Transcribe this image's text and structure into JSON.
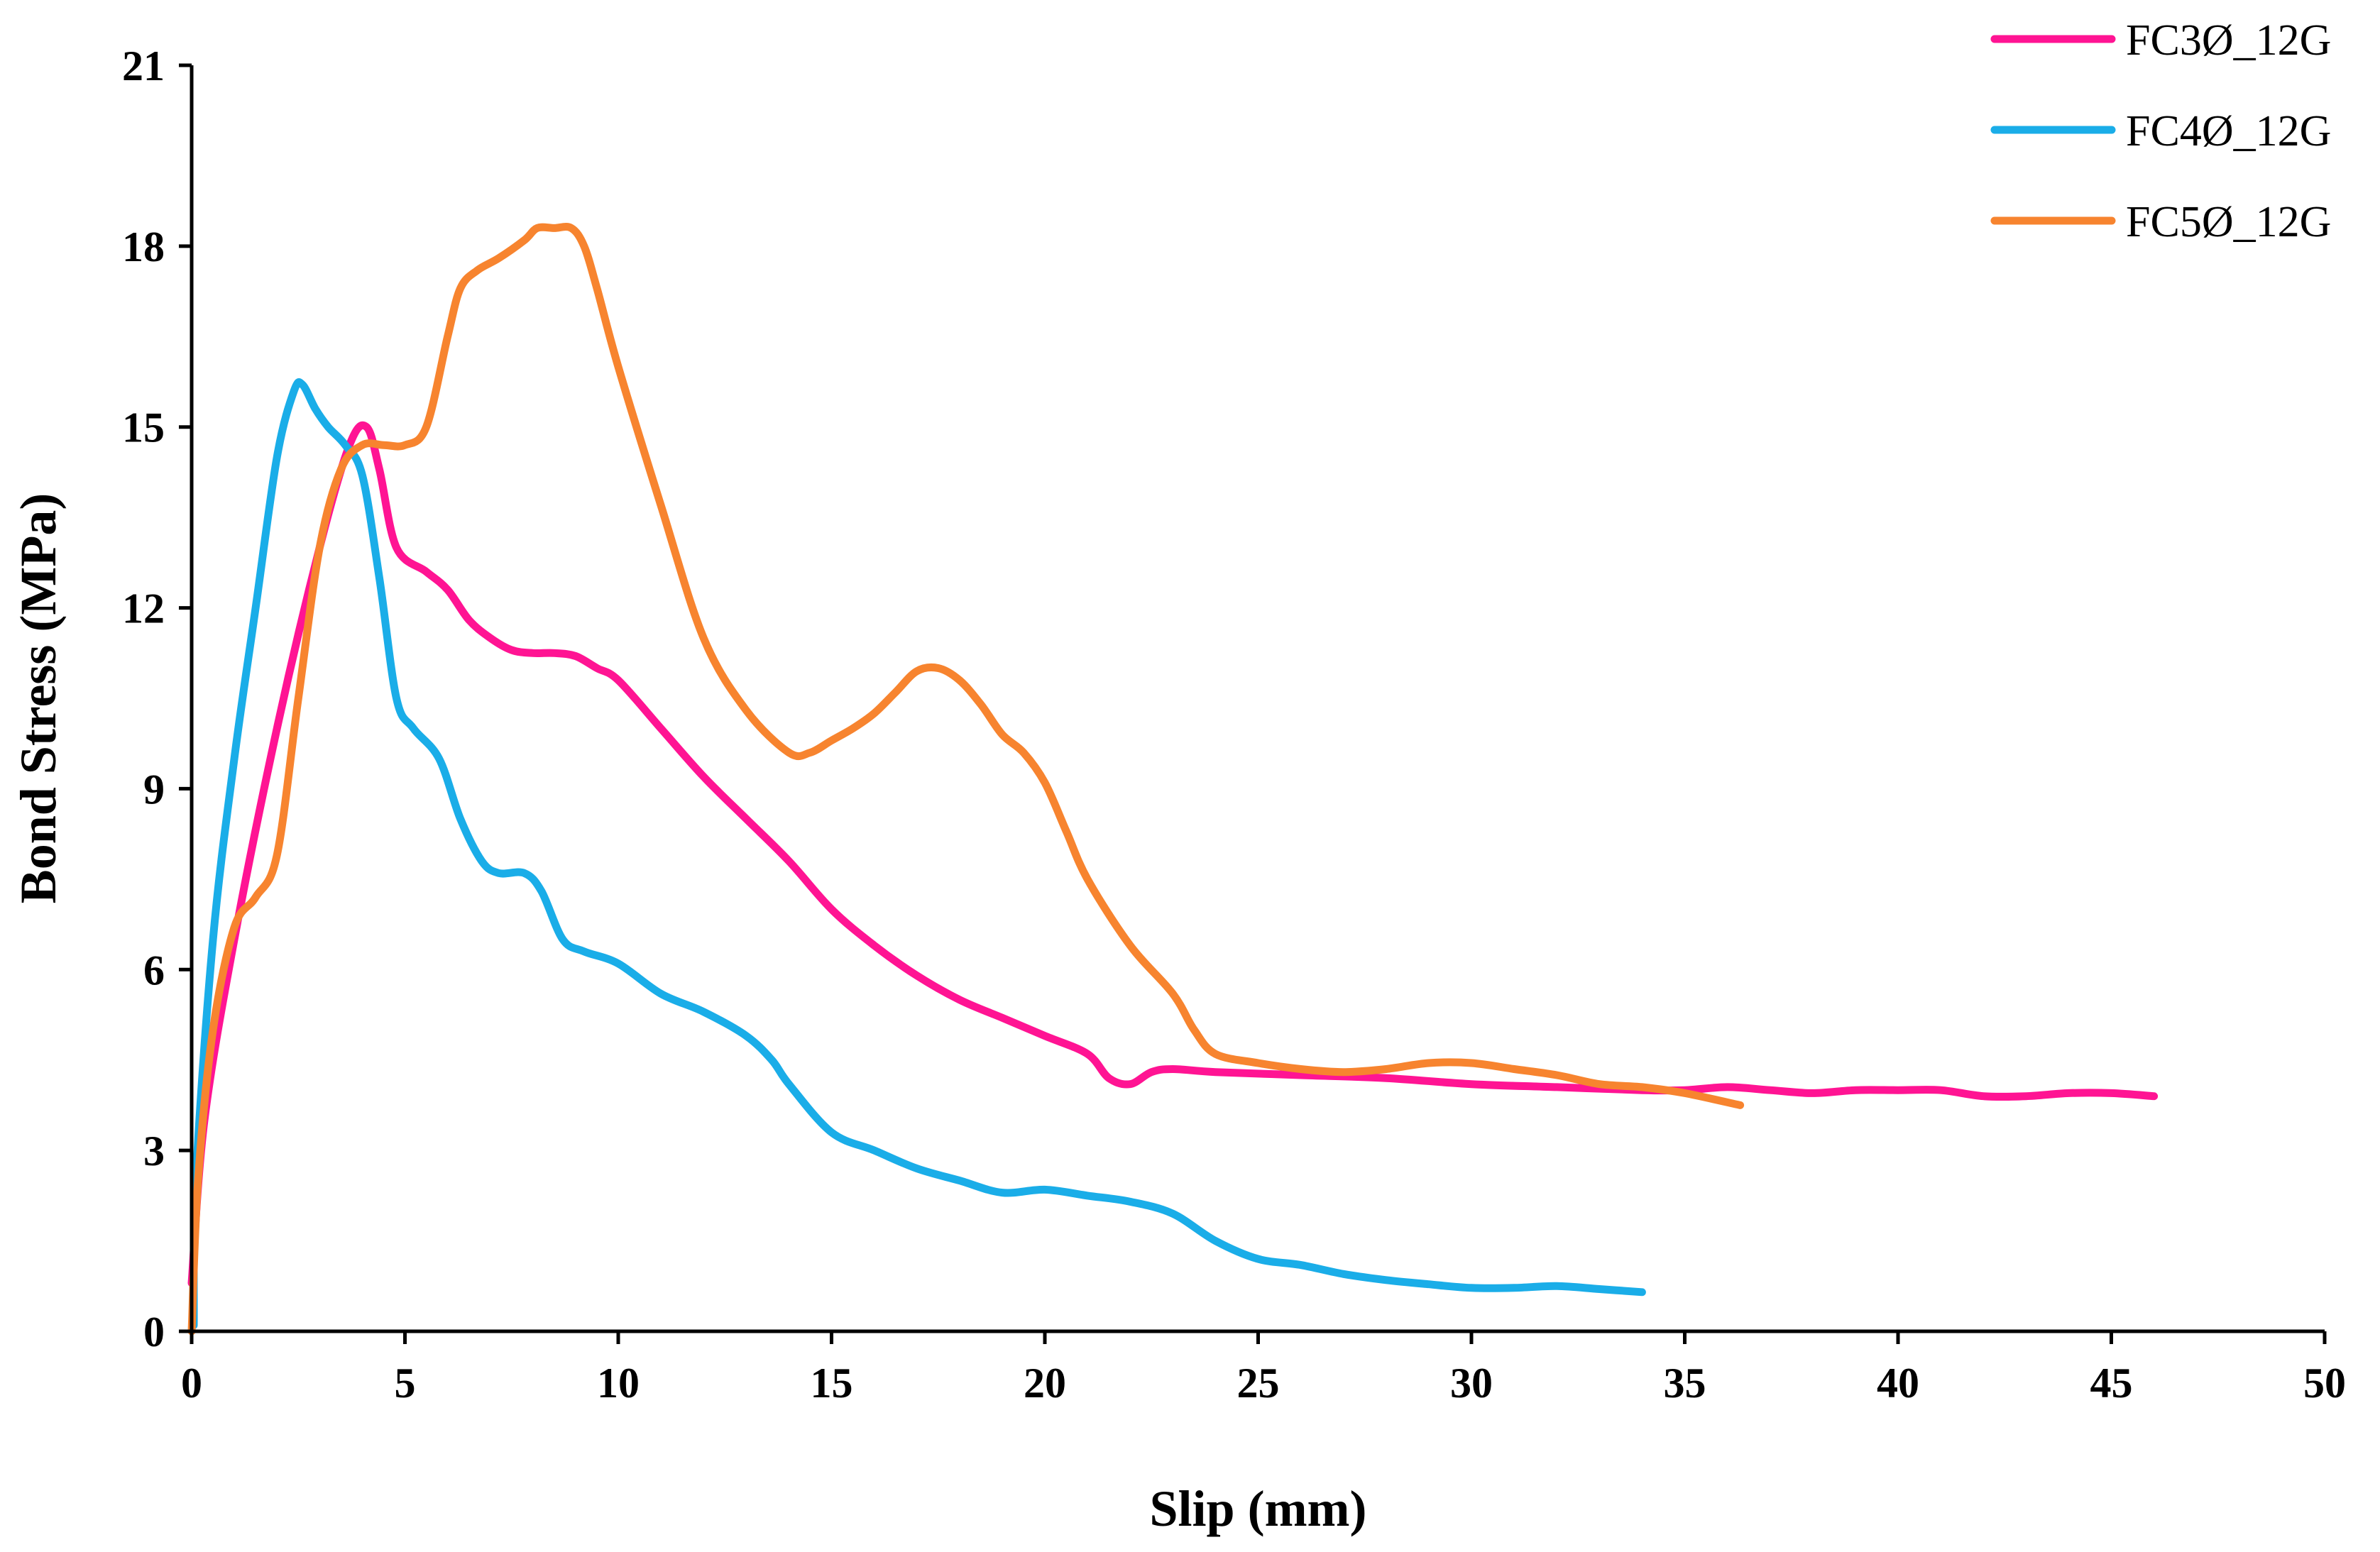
{
  "chart_data": {
    "type": "line",
    "title": "",
    "xlabel": "Slip (mm)",
    "ylabel": "Bond Stress (MPa)",
    "xlim": [
      0,
      50
    ],
    "ylim": [
      0,
      21
    ],
    "xticks": [
      0,
      5,
      10,
      15,
      20,
      25,
      30,
      35,
      40,
      45,
      50
    ],
    "yticks": [
      0,
      3,
      6,
      9,
      12,
      15,
      18,
      21
    ],
    "grid": false,
    "legend_position": "top-right",
    "series": [
      {
        "name": "FC3Ø_12G",
        "color": "#FF1493",
        "x": [
          0,
          0.3,
          1.0,
          2.0,
          3.0,
          3.7,
          4.1,
          4.4,
          4.8,
          5.5,
          6.0,
          6.5,
          7.0,
          7.5,
          8.0,
          8.5,
          9.0,
          9.5,
          10.0,
          11.0,
          12.0,
          13.0,
          14.0,
          15.0,
          16.0,
          17.0,
          18.0,
          19.0,
          20.0,
          21.0,
          21.5,
          22.0,
          22.5,
          23.0,
          24.0,
          26.0,
          28.0,
          30.0,
          32.0,
          34.0,
          35.0,
          36.0,
          37.0,
          38.0,
          39.0,
          40.0,
          41.0,
          42.0,
          43.0,
          44.0,
          45.0,
          46.0
        ],
        "y": [
          0.8,
          3.5,
          6.5,
          10.0,
          13.0,
          14.7,
          15.0,
          14.3,
          13.0,
          12.6,
          12.3,
          11.8,
          11.5,
          11.3,
          11.25,
          11.25,
          11.2,
          11.0,
          10.8,
          10.0,
          9.2,
          8.5,
          7.8,
          7.0,
          6.4,
          5.9,
          5.5,
          5.2,
          4.9,
          4.6,
          4.2,
          4.1,
          4.3,
          4.35,
          4.3,
          4.25,
          4.2,
          4.1,
          4.05,
          4.0,
          4.0,
          4.05,
          4.0,
          3.95,
          4.0,
          4.0,
          4.0,
          3.9,
          3.9,
          3.95,
          3.95,
          3.9
        ]
      },
      {
        "name": "FC4Ø_12G",
        "color": "#1AADE8",
        "x": [
          0.05,
          0.1,
          0.5,
          1.0,
          1.5,
          2.0,
          2.4,
          2.6,
          2.9,
          3.2,
          3.6,
          4.0,
          4.4,
          4.8,
          5.2,
          5.8,
          6.3,
          6.8,
          7.2,
          7.8,
          8.2,
          8.7,
          9.2,
          10.0,
          11.0,
          12.0,
          13.0,
          13.6,
          14.0,
          15.0,
          16.0,
          17.0,
          18.0,
          19.0,
          20.0,
          21.0,
          22.0,
          23.0,
          24.0,
          25.0,
          26.0,
          27.0,
          28.0,
          29.0,
          30.0,
          31.0,
          32.0,
          33.0,
          34.0
        ],
        "y": [
          0.1,
          2.5,
          6.5,
          9.5,
          12.0,
          14.5,
          15.6,
          15.7,
          15.3,
          15.0,
          14.7,
          14.2,
          12.5,
          10.5,
          10.0,
          9.5,
          8.5,
          7.8,
          7.6,
          7.6,
          7.3,
          6.5,
          6.3,
          6.1,
          5.6,
          5.3,
          4.9,
          4.5,
          4.1,
          3.3,
          3.0,
          2.7,
          2.5,
          2.3,
          2.35,
          2.25,
          2.15,
          1.95,
          1.5,
          1.2,
          1.1,
          0.95,
          0.85,
          0.78,
          0.72,
          0.72,
          0.75,
          0.7,
          0.65
        ]
      },
      {
        "name": "FC5Ø_12G",
        "color": "#F7842F",
        "x": [
          0,
          0.15,
          0.5,
          1.0,
          1.5,
          2.0,
          2.5,
          3.0,
          3.5,
          4.0,
          4.5,
          5.0,
          5.5,
          6.0,
          6.3,
          6.7,
          7.2,
          7.8,
          8.1,
          8.5,
          8.9,
          9.2,
          9.5,
          10.0,
          11.0,
          12.0,
          13.0,
          14.0,
          14.5,
          15.0,
          15.5,
          16.0,
          16.5,
          17.0,
          17.5,
          18.0,
          18.5,
          19.0,
          19.5,
          20.0,
          20.5,
          21.0,
          22.0,
          23.0,
          23.5,
          24.0,
          25.0,
          26.0,
          27.0,
          28.0,
          29.0,
          30.0,
          31.0,
          32.0,
          33.0,
          34.0,
          35.0,
          36.3
        ],
        "y": [
          0,
          2.5,
          5.0,
          6.7,
          7.2,
          7.9,
          10.5,
          13.0,
          14.3,
          14.7,
          14.7,
          14.7,
          15.0,
          16.5,
          17.3,
          17.6,
          17.8,
          18.1,
          18.3,
          18.3,
          18.3,
          18.0,
          17.3,
          16.0,
          13.7,
          11.5,
          10.3,
          9.6,
          9.6,
          9.8,
          10.0,
          10.25,
          10.6,
          10.95,
          11.0,
          10.8,
          10.4,
          9.9,
          9.6,
          9.1,
          8.3,
          7.5,
          6.4,
          5.6,
          5.0,
          4.6,
          4.45,
          4.35,
          4.3,
          4.35,
          4.45,
          4.45,
          4.35,
          4.25,
          4.1,
          4.05,
          3.95,
          3.75
        ]
      }
    ]
  }
}
